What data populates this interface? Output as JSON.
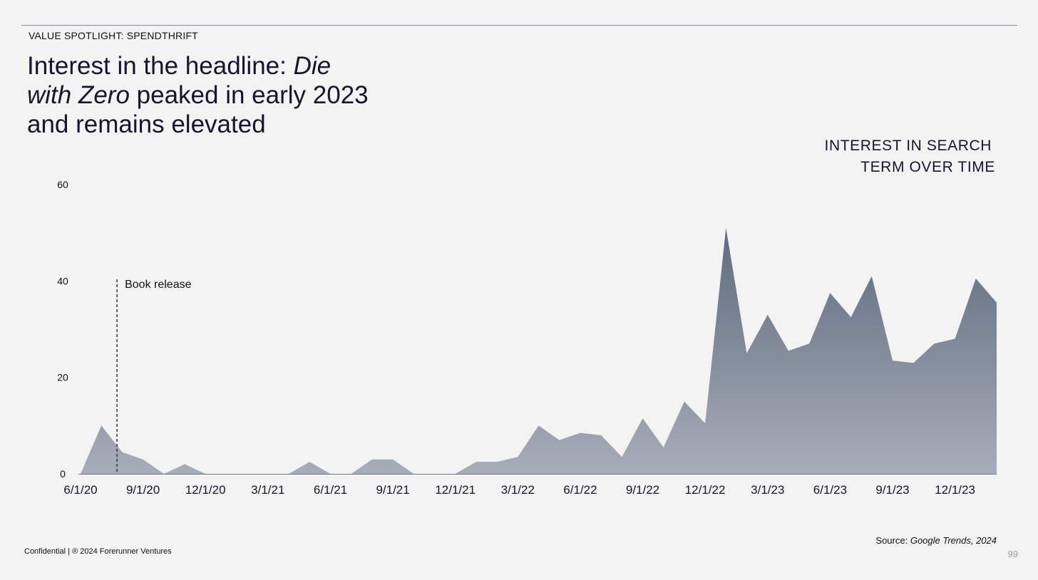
{
  "slide": {
    "kicker": "VALUE SPOTLIGHT: SPENDTHRIFT",
    "title_part1": "Interest in the headline: ",
    "title_italic": "Die with Zero",
    "title_part2": " peaked in early 2023 and remains elevated",
    "footer": "Confidential | ® 2024 Forerunner Ventures",
    "source_prefix": "Source: ",
    "source_italic": "Google Trends, 2024",
    "page_number": "99"
  },
  "chart_data": {
    "type": "area",
    "title_line1": "INTEREST IN SEARCH",
    "title_line2": "TERM OVER TIME",
    "xlabel": "",
    "ylabel": "",
    "ylim": [
      0,
      60
    ],
    "y_ticks": [
      0,
      20,
      40,
      60
    ],
    "x_tick_labels": [
      "6/1/20",
      "9/1/20",
      "12/1/20",
      "3/1/21",
      "6/1/21",
      "9/1/21",
      "12/1/21",
      "3/1/22",
      "6/1/22",
      "9/1/22",
      "12/1/22",
      "3/1/23",
      "6/1/23",
      "9/1/23",
      "12/1/23"
    ],
    "series": [
      {
        "values": [
          0,
          10,
          4.5,
          3,
          0,
          2,
          0,
          0,
          0,
          0,
          0,
          2.5,
          0,
          0,
          3,
          3,
          0,
          0,
          0,
          2.5,
          2.5,
          3.5,
          10,
          7,
          8.5,
          8,
          3.5,
          11.5,
          5.5,
          15,
          10.5,
          51,
          25,
          33,
          25.5,
          27,
          37.5,
          32.5,
          41,
          23.5,
          23,
          27,
          28,
          40.5,
          35.5
        ]
      }
    ],
    "annotations": [
      {
        "label": "Book release",
        "x": "7/1/20"
      }
    ],
    "grid": false,
    "colors": {
      "area_top": "#5f6b7e",
      "area_bottom": "#a7adb8",
      "baseline": "#6f7887"
    }
  }
}
